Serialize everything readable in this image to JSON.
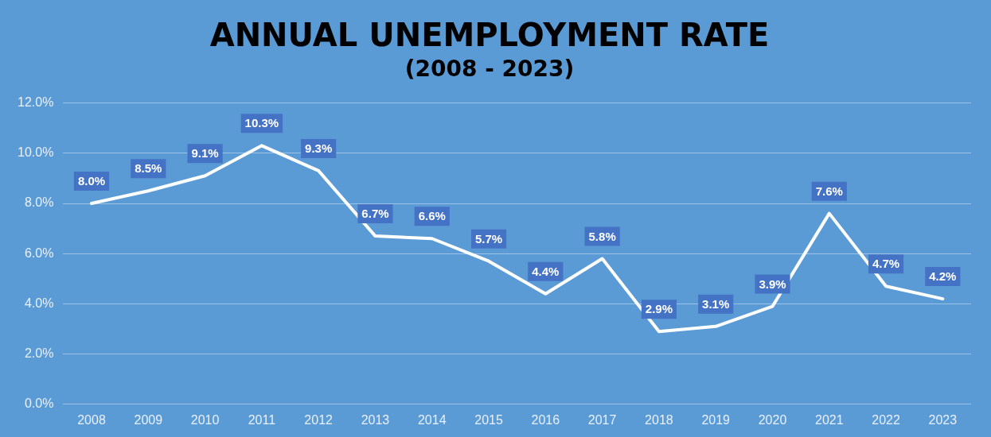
{
  "chart_data": {
    "type": "line",
    "title": "ANNUAL UNEMPLOYMENT RATE",
    "subtitle": "(2008 - 2023)",
    "categories": [
      "2008",
      "2009",
      "2010",
      "2011",
      "2012",
      "2013",
      "2014",
      "2015",
      "2016",
      "2017",
      "2018",
      "2019",
      "2020",
      "2021",
      "2022",
      "2023"
    ],
    "series": [
      {
        "color": "#ffffff",
        "values": [
          8.0,
          8.5,
          9.1,
          10.3,
          9.3,
          6.7,
          6.6,
          5.7,
          4.4,
          5.8,
          2.9,
          3.1,
          3.9,
          7.6,
          4.7,
          4.2
        ],
        "value_labels": [
          "8.0%",
          "8.5%",
          "9.1%",
          "10.3%",
          "9.3%",
          "6.7%",
          "6.6%",
          "5.7%",
          "4.4%",
          "5.8%",
          "2.9%",
          "3.1%",
          "3.9%",
          "7.6%",
          "4.7%",
          "4.2%"
        ]
      }
    ],
    "ylim": [
      0,
      12
    ],
    "yticks": [
      {
        "value": 0,
        "label": "0.0%"
      },
      {
        "value": 2,
        "label": "2.0%"
      },
      {
        "value": 4,
        "label": "4.0%"
      },
      {
        "value": 6,
        "label": "6.0%"
      },
      {
        "value": 8,
        "label": "8.0%"
      },
      {
        "value": 10,
        "label": "10.0%"
      },
      {
        "value": 12,
        "label": "12.0%"
      }
    ],
    "grid": "y",
    "legend": false,
    "marker": "none",
    "line_style": "solid"
  }
}
